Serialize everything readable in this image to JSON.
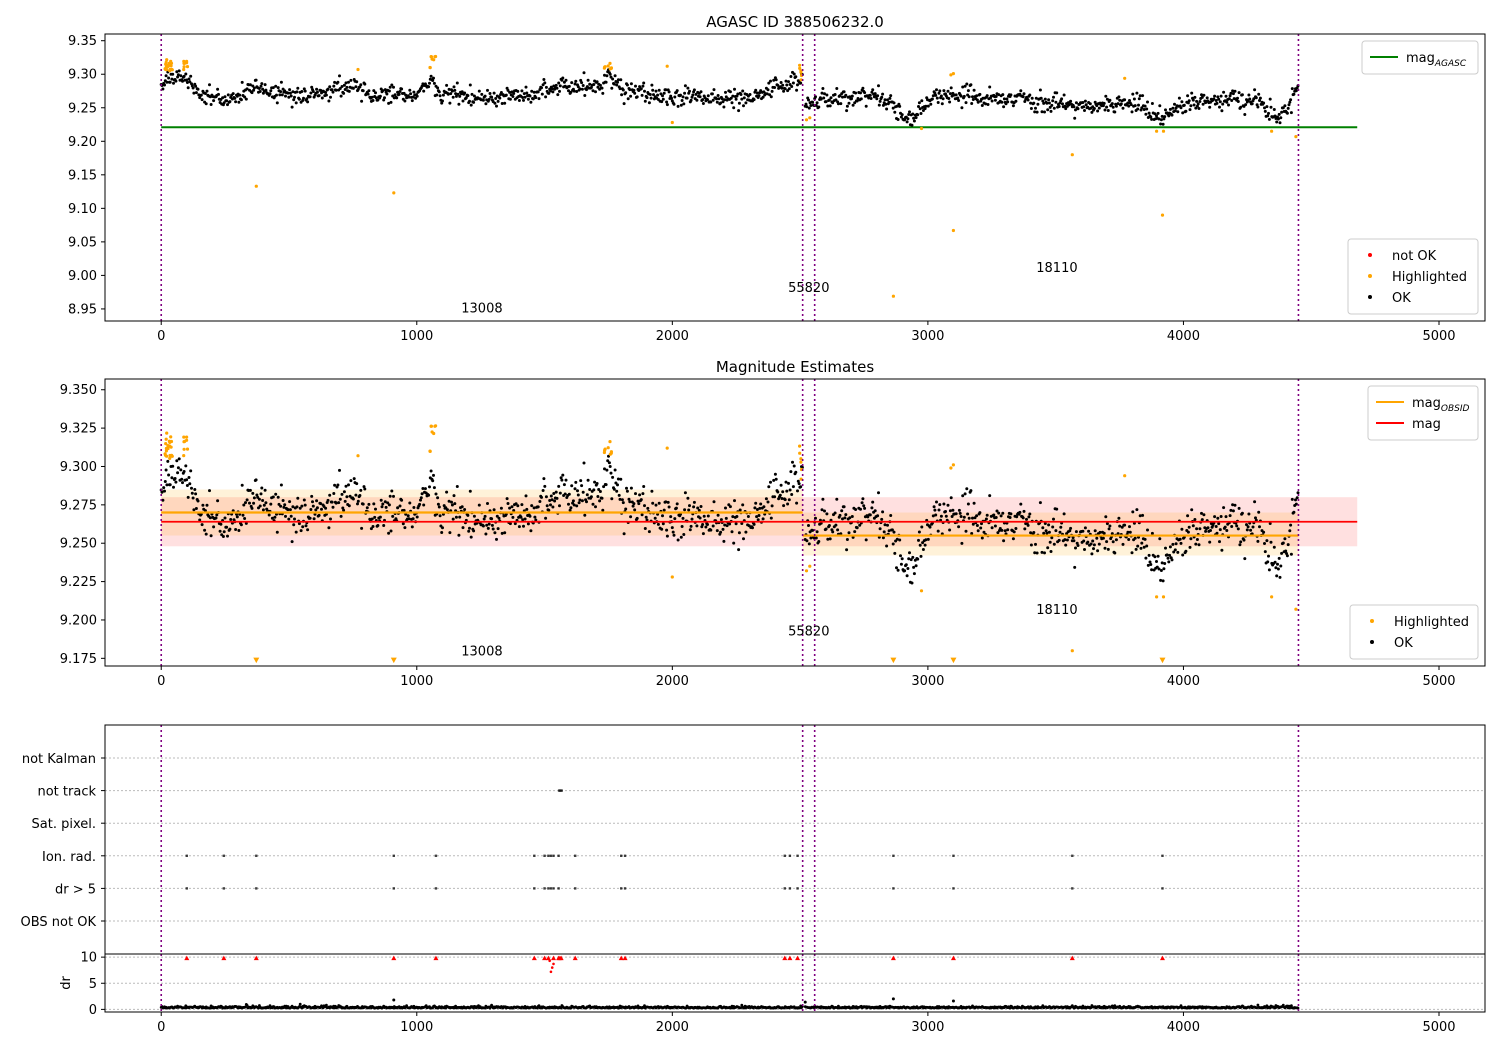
{
  "colors": {
    "ok": "#000000",
    "highlighted": "#ffa500",
    "not_ok": "#ff0000",
    "agasc_line": "#008000",
    "mag_line": "#ff0000",
    "mag_obsid_line": "#ffa500",
    "obs_boundary": "#800080",
    "flag_grid": "#bbbbbb"
  },
  "chart_data": [
    {
      "type": "scatter",
      "title": "AGASC ID 388506232.0",
      "xlabel": "",
      "ylabel": "",
      "xlim": [
        -220,
        5180
      ],
      "ylim": [
        8.932,
        9.36
      ],
      "xticks": [
        0,
        1000,
        2000,
        3000,
        4000,
        5000
      ],
      "yticks": [
        8.95,
        9.0,
        9.05,
        9.1,
        9.15,
        9.2,
        9.25,
        9.3,
        9.35
      ],
      "ytick_labels": [
        "8.95",
        "9.00",
        "9.05",
        "9.10",
        "9.15",
        "9.20",
        "9.25",
        "9.30",
        "9.35"
      ],
      "grid": false,
      "legends": [
        {
          "placement": "upper-right",
          "entries": [
            {
              "label": "mag",
              "sub": "AGASC",
              "style": "line",
              "color": "#008000"
            }
          ]
        },
        {
          "placement": "lower-right",
          "entries": [
            {
              "label": "not OK",
              "style": "dot",
              "color": "#ff0000"
            },
            {
              "label": "Highlighted",
              "style": "dot",
              "color": "#ffa500"
            },
            {
              "label": "OK",
              "style": "dot",
              "color": "#000000"
            }
          ]
        }
      ],
      "horizontal_lines": [
        {
          "name": "mag_AGASC",
          "y": 9.221,
          "x_range": [
            0,
            4680
          ],
          "color": "#008000"
        }
      ],
      "obs_boundaries": [
        0,
        2510,
        2557,
        4450
      ],
      "obs_labels": [
        {
          "text": "13008",
          "x": 1255,
          "y": 8.945
        },
        {
          "text": "55820",
          "x": 2534,
          "y": 8.975
        },
        {
          "text": "18110",
          "x": 3505,
          "y": 9.005
        }
      ],
      "segments": [
        {
          "start": 0,
          "end": 2510,
          "trend": [
            [
              0,
              9.29
            ],
            [
              90,
              9.297
            ],
            [
              150,
              9.27
            ],
            [
              260,
              9.26
            ],
            [
              350,
              9.28
            ],
            [
              550,
              9.268
            ],
            [
              760,
              9.283
            ],
            [
              820,
              9.27
            ],
            [
              1000,
              9.27
            ],
            [
              1060,
              9.295
            ],
            [
              1080,
              9.27
            ],
            [
              1400,
              9.265
            ],
            [
              1500,
              9.278
            ],
            [
              1550,
              9.283
            ],
            [
              1720,
              9.28
            ],
            [
              1750,
              9.298
            ],
            [
              1800,
              9.28
            ],
            [
              2000,
              9.265
            ],
            [
              2300,
              9.265
            ],
            [
              2400,
              9.282
            ],
            [
              2505,
              9.29
            ]
          ]
        },
        {
          "start": 2520,
          "end": 2557,
          "trend": [
            [
              2520,
              9.26
            ],
            [
              2557,
              9.262
            ]
          ]
        },
        {
          "start": 2557,
          "end": 4450,
          "trend": [
            [
              2557,
              9.26
            ],
            [
              2750,
              9.268
            ],
            [
              2850,
              9.26
            ],
            [
              2900,
              9.238
            ],
            [
              2960,
              9.238
            ],
            [
              3000,
              9.26
            ],
            [
              3100,
              9.27
            ],
            [
              3300,
              9.26
            ],
            [
              3400,
              9.265
            ],
            [
              3600,
              9.25
            ],
            [
              3800,
              9.26
            ],
            [
              3880,
              9.245
            ],
            [
              3920,
              9.235
            ],
            [
              4000,
              9.255
            ],
            [
              4200,
              9.265
            ],
            [
              4300,
              9.255
            ],
            [
              4370,
              9.23
            ],
            [
              4420,
              9.26
            ],
            [
              4450,
              9.28
            ]
          ]
        }
      ],
      "noise": 0.012,
      "point_spacing": 3.2,
      "highlighted_clusters": [
        {
          "x_range": [
            15,
            45
          ],
          "y_range": [
            9.305,
            9.322
          ],
          "n": 22
        },
        {
          "x_range": [
            85,
            105
          ],
          "y_range": [
            9.305,
            9.32
          ],
          "n": 8
        },
        {
          "x_range": [
            1050,
            1075
          ],
          "y_range": [
            9.305,
            9.327
          ],
          "n": 8
        },
        {
          "x_range": [
            1725,
            1765
          ],
          "y_range": [
            9.305,
            9.318
          ],
          "n": 8
        },
        {
          "x_range": [
            2490,
            2512
          ],
          "y_range": [
            9.29,
            9.315
          ],
          "n": 6
        }
      ],
      "highlighted_points": [
        [
          372,
          9.133
        ],
        [
          910,
          9.123
        ],
        [
          770,
          9.307
        ],
        [
          1980,
          9.312
        ],
        [
          2000,
          9.228
        ],
        [
          2525,
          9.232
        ],
        [
          2538,
          9.235
        ],
        [
          2865,
          8.969
        ],
        [
          2975,
          9.219
        ],
        [
          3090,
          9.299
        ],
        [
          3100,
          9.301
        ],
        [
          3100,
          9.067
        ],
        [
          3565,
          9.18
        ],
        [
          3770,
          9.294
        ],
        [
          3895,
          9.215
        ],
        [
          3918,
          9.09
        ],
        [
          3922,
          9.215
        ],
        [
          4345,
          9.215
        ],
        [
          4440,
          9.207
        ]
      ],
      "not_ok_points": []
    },
    {
      "type": "scatter",
      "title": "Magnitude Estimates",
      "xlabel": "",
      "ylabel": "",
      "xlim": [
        -220,
        5180
      ],
      "ylim": [
        9.17,
        9.357
      ],
      "xticks": [
        0,
        1000,
        2000,
        3000,
        4000,
        5000
      ],
      "yticks": [
        9.175,
        9.2,
        9.225,
        9.25,
        9.275,
        9.3,
        9.325,
        9.35
      ],
      "ytick_labels": [
        "9.175",
        "9.200",
        "9.225",
        "9.250",
        "9.275",
        "9.300",
        "9.325",
        "9.350"
      ],
      "grid": false,
      "legends": [
        {
          "placement": "upper-right",
          "entries": [
            {
              "label": "mag",
              "sub": "OBSID",
              "style": "line",
              "color": "#ffa500"
            },
            {
              "label": "mag",
              "style": "line",
              "color": "#ff0000"
            }
          ]
        },
        {
          "placement": "lower-right",
          "entries": [
            {
              "label": "Highlighted",
              "style": "dot",
              "color": "#ffa500"
            },
            {
              "label": "OK",
              "style": "dot",
              "color": "#000000"
            }
          ]
        }
      ],
      "mag_band": {
        "y": 9.264,
        "lower": 9.248,
        "upper": 9.28,
        "x_range": [
          0,
          4680
        ],
        "color": "#ff0000"
      },
      "obsid_bands": [
        {
          "x_range": [
            0,
            2510
          ],
          "y": 9.27,
          "lower": 9.255,
          "upper": 9.285
        },
        {
          "x_range": [
            2510,
            4450
          ],
          "y": 9.255,
          "lower": 9.242,
          "upper": 9.27
        }
      ],
      "obs_boundaries": [
        0,
        2510,
        2557,
        4450
      ],
      "obs_labels": [
        {
          "text": "13008",
          "x": 1255,
          "y": 9.177
        },
        {
          "text": "55820",
          "x": 2534,
          "y": 9.19
        },
        {
          "text": "18110",
          "x": 3505,
          "y": 9.204
        }
      ],
      "clip_markers_x": [
        372,
        910,
        2865,
        3100,
        3918
      ],
      "clip_marker_y": 9.1735
    },
    {
      "type": "scatter",
      "title": "",
      "xlabel": "",
      "ylabel": "",
      "xlim": [
        -220,
        5180
      ],
      "flag_categories": [
        "not Kalman",
        "not track",
        "Sat. pixel.",
        "Ion. rad.",
        "dr > 5",
        "OBS not OK"
      ],
      "flag_points": {
        "not track": [
          1557,
          1562,
          1567
        ],
        "Ion. rad.": [
          100,
          245,
          372,
          910,
          1075,
          1460,
          1500,
          1515,
          1525,
          1535,
          1555,
          1620,
          1800,
          1815,
          2440,
          2460,
          2490,
          2865,
          3100,
          3565,
          3918
        ],
        "dr > 5": [
          100,
          245,
          372,
          910,
          1075,
          1460,
          1500,
          1515,
          1525,
          1535,
          1555,
          1620,
          1800,
          1815,
          2440,
          2460,
          2490,
          2865,
          3100,
          3565,
          3918
        ]
      },
      "obs_boundaries": [
        0,
        2510,
        2557,
        4450
      ]
    },
    {
      "type": "scatter",
      "title": "",
      "xlabel": "",
      "ylabel": "dr",
      "xlim": [
        -220,
        5180
      ],
      "ylim": [
        -0.5,
        10.6
      ],
      "xticks": [
        0,
        1000,
        2000,
        3000,
        4000,
        5000
      ],
      "yticks": [
        0,
        5,
        10
      ],
      "grid": true,
      "clip_markers_x": [
        100,
        245,
        372,
        910,
        1075,
        1460,
        1500,
        1515,
        1535,
        1555,
        1560,
        1565,
        1620,
        1800,
        1815,
        2440,
        2460,
        2490,
        2865,
        3100,
        3565,
        3918
      ],
      "clip_marker_y": 9.8,
      "extra_red_points": [
        [
          1525,
          7.2
        ],
        [
          1530,
          8.0
        ],
        [
          1535,
          8.7
        ],
        [
          1520,
          9.3
        ]
      ],
      "dr_outliers": [
        [
          910,
          1.8
        ],
        [
          2865,
          2.0
        ],
        [
          3100,
          1.6
        ],
        [
          2520,
          1.4
        ]
      ],
      "dr_baseline": 0.25
    }
  ]
}
